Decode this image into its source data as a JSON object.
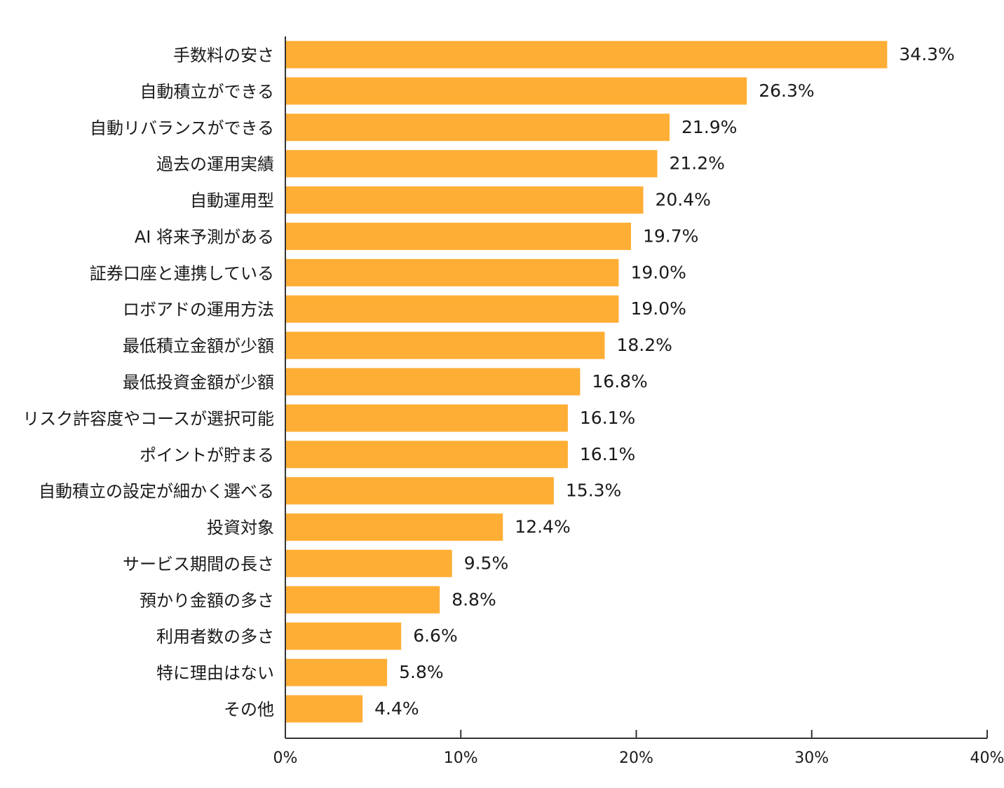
{
  "chart_data": {
    "type": "bar",
    "orientation": "horizontal",
    "title": "",
    "xlabel": "",
    "ylabel": "",
    "xlim": [
      0,
      40
    ],
    "x_ticks": [
      "0%",
      "10%",
      "20%",
      "30%",
      "40%"
    ],
    "grid": false,
    "value_suffix": "%",
    "bar_color": "#FFAE35",
    "categories": [
      "手数料の安さ",
      "自動積立ができる",
      "自動リバランスができる",
      "過去の運用実績",
      "自動運用型",
      "AI 将来予測がある",
      "証券口座と連携している",
      "ロボアドの運用方法",
      "最低積立金額が少額",
      "最低投資金額が少額",
      "リスク許容度やコースが選択可能",
      "ポイントが貯まる",
      "自動積立の設定が細かく選べる",
      "投資対象",
      "サービス期間の長さ",
      "預かり金額の多さ",
      "利用者数の多さ",
      "特に理由はない",
      "その他"
    ],
    "values": [
      34.3,
      26.3,
      21.9,
      21.2,
      20.4,
      19.7,
      19.0,
      19.0,
      18.2,
      16.8,
      16.1,
      16.1,
      15.3,
      12.4,
      9.5,
      8.8,
      6.6,
      5.8,
      4.4
    ],
    "value_labels": [
      "34.3%",
      "26.3%",
      "21.9%",
      "21.2%",
      "20.4%",
      "19.7%",
      "19.0%",
      "19.0%",
      "18.2%",
      "16.8%",
      "16.1%",
      "16.1%",
      "15.3%",
      "12.4%",
      "9.5%",
      "8.8%",
      "6.6%",
      "5.8%",
      "4.4%"
    ]
  }
}
